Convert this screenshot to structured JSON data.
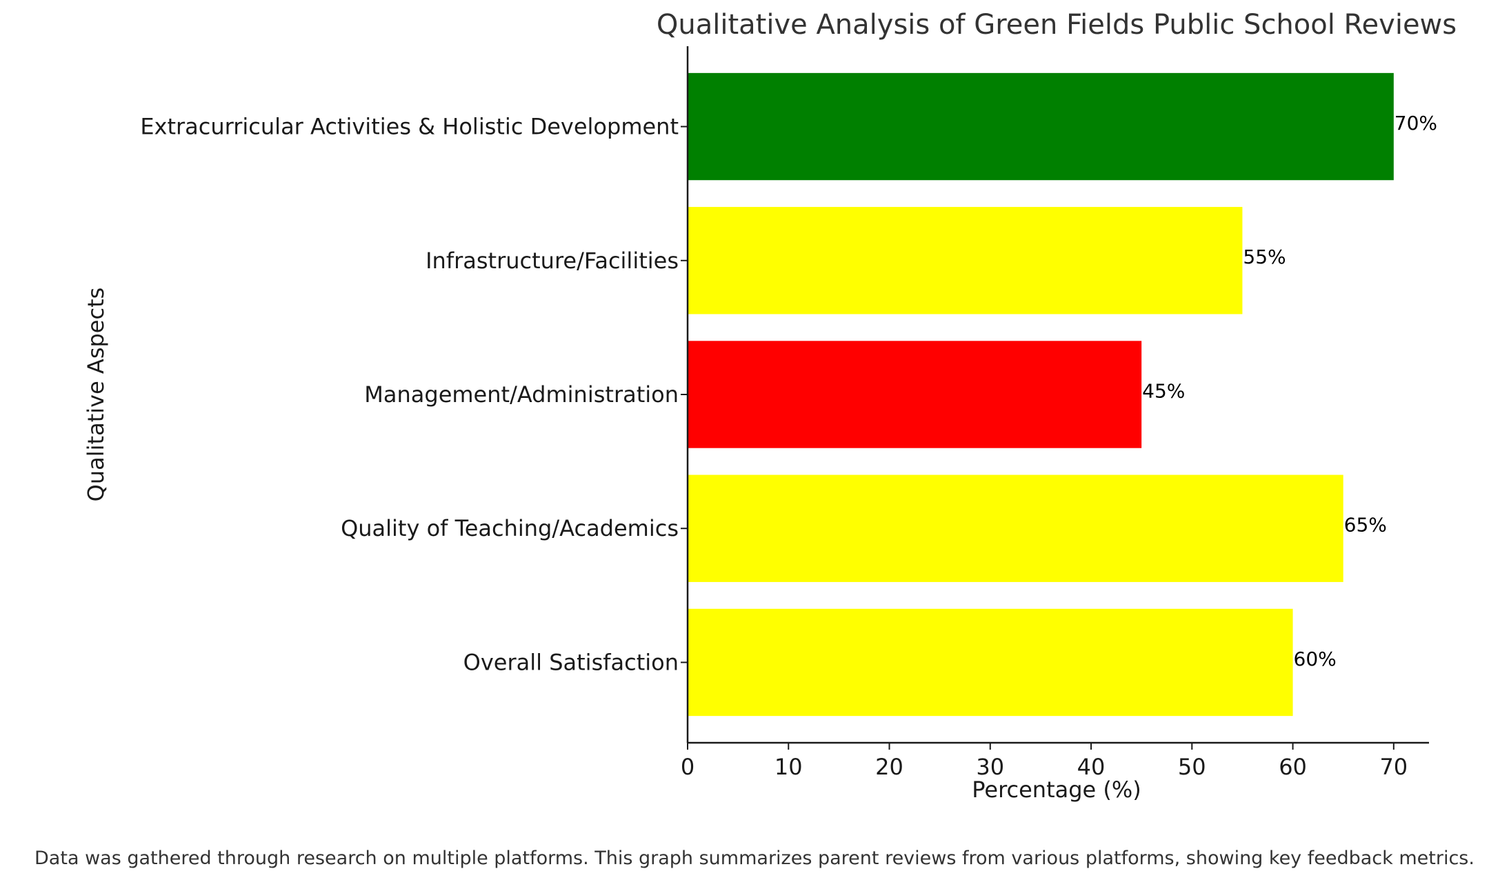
{
  "chart_data": {
    "type": "bar",
    "orientation": "horizontal",
    "title": "Qualitative Analysis of Green Fields Public School Reviews",
    "xlabel": "Percentage (%)",
    "ylabel": "Qualitative Aspects",
    "xlim": [
      0,
      73.5
    ],
    "xticks": [
      0,
      10,
      20,
      30,
      40,
      50,
      60,
      70
    ],
    "categories": [
      "Overall Satisfaction",
      "Quality of Teaching/Academics",
      "Management/Administration",
      "Infrastructure/Facilities",
      "Extracurricular Activities & Holistic Development"
    ],
    "values": [
      60,
      65,
      45,
      55,
      70
    ],
    "value_labels": [
      "60%",
      "65%",
      "45%",
      "55%",
      "70%"
    ],
    "colors": [
      "#ffff00",
      "#ffff00",
      "#ff0000",
      "#ffff00",
      "#008000"
    ],
    "grid": false,
    "footnote": "Data was gathered through research on multiple platforms. This graph summarizes parent reviews from various platforms, showing key feedback metrics."
  }
}
